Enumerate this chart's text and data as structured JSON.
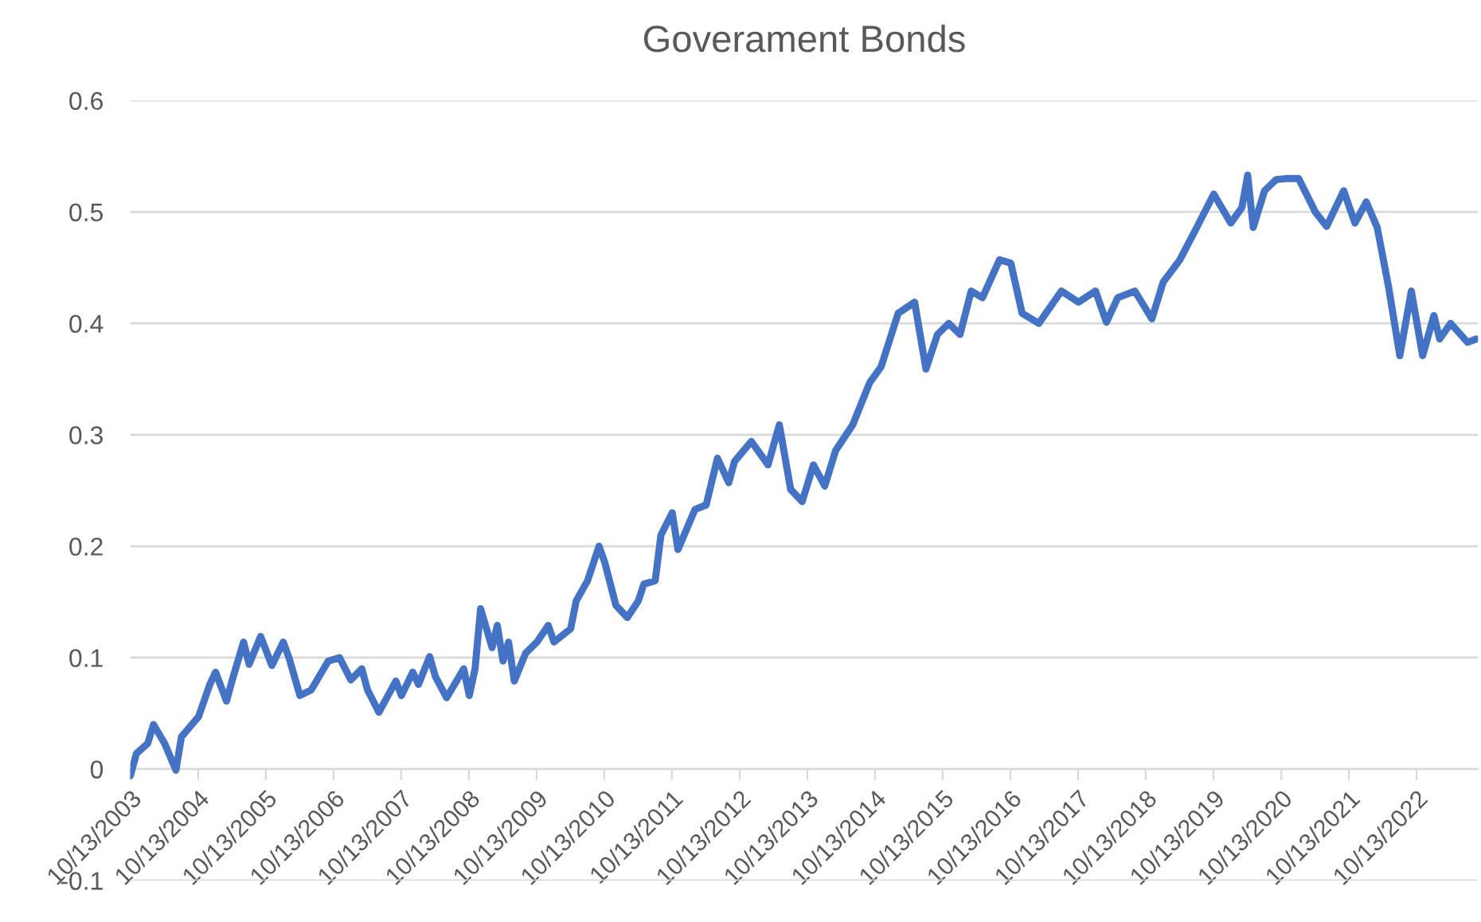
{
  "chart_data": {
    "type": "line",
    "title": "Goverament Bonds",
    "x": [
      "2003-10-13",
      "2003-11-15",
      "2004-01-15",
      "2004-02-15",
      "2004-04-15",
      "2004-06-15",
      "2004-07-15",
      "2004-10-15",
      "2004-12-15",
      "2005-01-15",
      "2005-03-15",
      "2005-04-15",
      "2005-06-15",
      "2005-07-15",
      "2005-09-15",
      "2005-11-15",
      "2006-01-15",
      "2006-02-15",
      "2006-04-15",
      "2006-06-15",
      "2006-09-15",
      "2006-11-15",
      "2007-01-15",
      "2007-03-15",
      "2007-04-15",
      "2007-06-15",
      "2007-09-15",
      "2007-10-15",
      "2007-12-15",
      "2008-01-15",
      "2008-03-15",
      "2008-04-15",
      "2008-06-15",
      "2008-09-15",
      "2008-10-15",
      "2008-11-15",
      "2008-12-15",
      "2009-02-15",
      "2009-03-15",
      "2009-04-15",
      "2009-05-15",
      "2009-06-15",
      "2009-08-15",
      "2009-10-15",
      "2009-12-15",
      "2010-01-15",
      "2010-04-15",
      "2010-05-15",
      "2010-07-15",
      "2010-09-15",
      "2010-10-15",
      "2010-12-15",
      "2011-02-15",
      "2011-04-15",
      "2011-05-15",
      "2011-07-15",
      "2011-08-15",
      "2011-10-15",
      "2011-11-15",
      "2012-02-15",
      "2012-04-15",
      "2012-06-15",
      "2012-08-15",
      "2012-09-15",
      "2012-12-15",
      "2013-03-15",
      "2013-05-15",
      "2013-07-15",
      "2013-09-15",
      "2013-11-15",
      "2014-01-15",
      "2014-03-15",
      "2014-06-15",
      "2014-09-15",
      "2014-11-15",
      "2015-02-15",
      "2015-05-15",
      "2015-07-15",
      "2015-09-15",
      "2015-11-15",
      "2016-01-15",
      "2016-03-15",
      "2016-05-15",
      "2016-08-15",
      "2016-10-15",
      "2016-12-15",
      "2017-03-15",
      "2017-07-15",
      "2017-10-15",
      "2018-01-15",
      "2018-03-15",
      "2018-05-15",
      "2018-08-15",
      "2018-11-15",
      "2019-01-15",
      "2019-04-15",
      "2019-07-15",
      "2019-10-15",
      "2020-01-15",
      "2020-03-15",
      "2020-04-15",
      "2020-05-15",
      "2020-07-15",
      "2020-09-15",
      "2020-11-15",
      "2021-01-15",
      "2021-04-15",
      "2021-06-15",
      "2021-09-15",
      "2021-11-15",
      "2022-01-15",
      "2022-03-15",
      "2022-05-15",
      "2022-07-15",
      "2022-09-15",
      "2022-11-15",
      "2023-01-15",
      "2023-02-15",
      "2023-04-15",
      "2023-07-15",
      "2023-09-01"
    ],
    "series": [
      {
        "color": "#4472c4",
        "values": [
          -0.006,
          0.014,
          0.023,
          0.04,
          0.023,
          -0.001,
          0.029,
          0.047,
          0.076,
          0.087,
          0.061,
          0.08,
          0.114,
          0.094,
          0.119,
          0.093,
          0.114,
          0.1,
          0.066,
          0.071,
          0.097,
          0.1,
          0.08,
          0.09,
          0.071,
          0.051,
          0.079,
          0.066,
          0.087,
          0.076,
          0.101,
          0.083,
          0.064,
          0.09,
          0.066,
          0.09,
          0.144,
          0.109,
          0.129,
          0.097,
          0.114,
          0.079,
          0.104,
          0.114,
          0.129,
          0.114,
          0.126,
          0.151,
          0.169,
          0.2,
          0.186,
          0.147,
          0.136,
          0.151,
          0.166,
          0.169,
          0.21,
          0.23,
          0.197,
          0.233,
          0.237,
          0.279,
          0.257,
          0.276,
          0.294,
          0.273,
          0.309,
          0.251,
          0.24,
          0.273,
          0.254,
          0.286,
          0.309,
          0.347,
          0.361,
          0.409,
          0.419,
          0.359,
          0.39,
          0.4,
          0.39,
          0.429,
          0.423,
          0.457,
          0.454,
          0.409,
          0.4,
          0.429,
          0.419,
          0.429,
          0.401,
          0.423,
          0.429,
          0.404,
          0.437,
          0.457,
          0.486,
          0.516,
          0.49,
          0.504,
          0.533,
          0.486,
          0.519,
          0.529,
          0.53,
          0.53,
          0.5,
          0.487,
          0.519,
          0.49,
          0.509,
          0.486,
          0.433,
          0.371,
          0.429,
          0.371,
          0.407,
          0.386,
          0.4,
          0.383,
          0.386
        ]
      }
    ],
    "xlim": [
      "2003-10-13",
      "2023-09-10"
    ],
    "xticks": [
      {
        "value": "2003-10-13",
        "label": "10/13/2003"
      },
      {
        "value": "2004-10-13",
        "label": "10/13/2004"
      },
      {
        "value": "2005-10-13",
        "label": "10/13/2005"
      },
      {
        "value": "2006-10-13",
        "label": "10/13/2006"
      },
      {
        "value": "2007-10-13",
        "label": "10/13/2007"
      },
      {
        "value": "2008-10-13",
        "label": "10/13/2008"
      },
      {
        "value": "2009-10-13",
        "label": "10/13/2009"
      },
      {
        "value": "2010-10-13",
        "label": "10/13/2010"
      },
      {
        "value": "2011-10-13",
        "label": "10/13/2011"
      },
      {
        "value": "2012-10-13",
        "label": "10/13/2012"
      },
      {
        "value": "2013-10-13",
        "label": "10/13/2013"
      },
      {
        "value": "2014-10-13",
        "label": "10/13/2014"
      },
      {
        "value": "2015-10-13",
        "label": "10/13/2015"
      },
      {
        "value": "2016-10-13",
        "label": "10/13/2016"
      },
      {
        "value": "2017-10-13",
        "label": "10/13/2017"
      },
      {
        "value": "2018-10-13",
        "label": "10/13/2018"
      },
      {
        "value": "2019-10-13",
        "label": "10/13/2019"
      },
      {
        "value": "2020-10-13",
        "label": "10/13/2020"
      },
      {
        "value": "2021-10-13",
        "label": "10/13/2021"
      },
      {
        "value": "2022-10-13",
        "label": "10/13/2022"
      }
    ],
    "ylim": [
      -0.1,
      0.6
    ],
    "yticks": [
      -0.1,
      0,
      0.1,
      0.2,
      0.3,
      0.4,
      0.5,
      0.6
    ],
    "grid": "y",
    "marker": "none",
    "line_style": "solid"
  }
}
